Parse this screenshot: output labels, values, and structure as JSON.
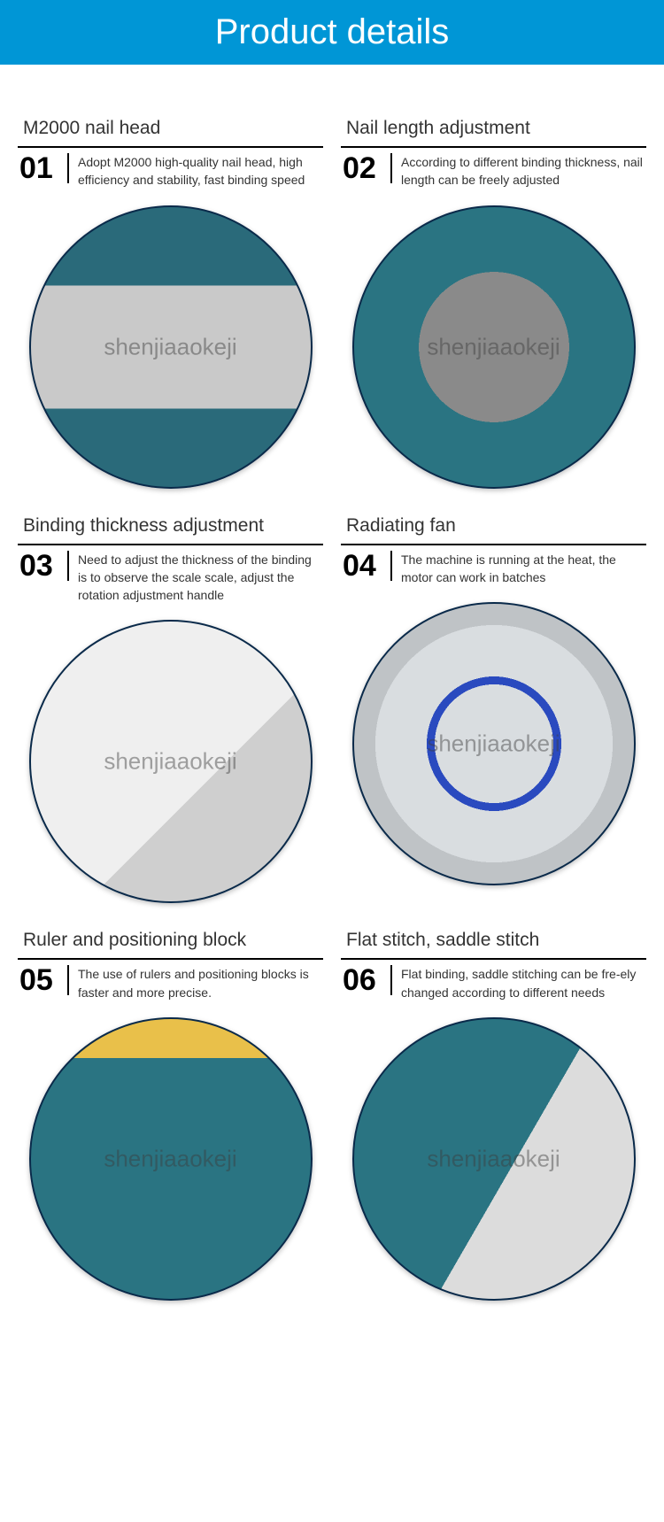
{
  "header": {
    "title": "Product details"
  },
  "watermark": "shenjiaaokeji",
  "colors": {
    "header_bg": "#0096d6",
    "header_text": "#ffffff",
    "text": "#333333",
    "rule": "#000000",
    "circle_border": "#0a2a4a",
    "teal": "#2a7482",
    "grey": "#e8e8e8"
  },
  "features": [
    {
      "num": "01",
      "title": "M2000 nail head",
      "desc": "Adopt M2000 high-quality nail head, high efficiency and stability, fast binding speed",
      "circle_class": "c1"
    },
    {
      "num": "02",
      "title": "Nail length adjustment",
      "desc": "According to different binding thickness, nail length can be freely adjusted",
      "circle_class": "c2"
    },
    {
      "num": "03",
      "title": "Binding thickness adjustment",
      "desc": "Need to adjust the thickness of the binding is to observe the scale scale, adjust the rotation adjustment handle",
      "circle_class": "c3"
    },
    {
      "num": "04",
      "title": "Radiating fan",
      "desc": "The machine is running at the heat, the motor can work in batches",
      "circle_class": "c4"
    },
    {
      "num": "05",
      "title": "Ruler and positioning block",
      "desc": "The use of rulers and positioning blocks is faster and more precise.",
      "circle_class": "c5"
    },
    {
      "num": "06",
      "title": "Flat stitch, saddle stitch",
      "desc": "Flat binding, saddle stitching can be fre-ely changed according to different needs",
      "circle_class": "c6"
    }
  ]
}
